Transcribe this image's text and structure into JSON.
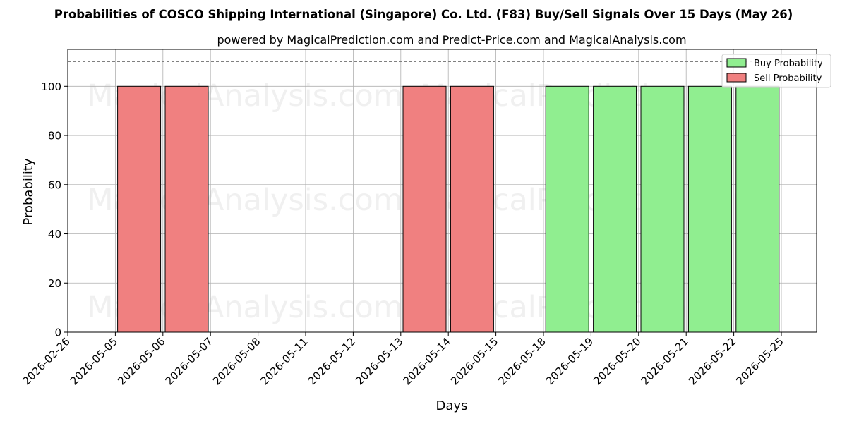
{
  "chart_data": {
    "type": "bar",
    "title": "Probabilities of COSCO Shipping International (Singapore) Co. Ltd. (F83) Buy/Sell Signals Over 15 Days (May 26)",
    "subtitle": "powered by MagicalPrediction.com and Predict-Price.com and MagicalAnalysis.com",
    "xlabel": "Days",
    "ylabel": "Probability",
    "ylim": [
      0,
      115
    ],
    "yticks": [
      0,
      20,
      40,
      60,
      80,
      100
    ],
    "threshold_line": 110,
    "grid": true,
    "legend_position": "top-right",
    "categories": [
      "2026-02-26",
      "2026-05-05",
      "2026-05-06",
      "2026-05-07",
      "2026-05-08",
      "2026-05-11",
      "2026-05-12",
      "2026-05-13",
      "2026-05-14",
      "2026-05-15",
      "2026-05-18",
      "2026-05-19",
      "2026-05-20",
      "2026-05-21",
      "2026-05-22",
      "2026-05-25"
    ],
    "series": [
      {
        "name": "Buy Probability",
        "color": "#90ee90",
        "bars": [
          {
            "date": "2026-05-18",
            "value": 100
          },
          {
            "date": "2026-05-19",
            "value": 100
          },
          {
            "date": "2026-05-20",
            "value": 100
          },
          {
            "date": "2026-05-21",
            "value": 100
          },
          {
            "date": "2026-05-22",
            "value": 100
          }
        ]
      },
      {
        "name": "Sell Probability",
        "color": "#f08080",
        "bars": [
          {
            "date": "2026-05-05",
            "value": 100
          },
          {
            "date": "2026-05-06",
            "value": 100
          },
          {
            "date": "2026-05-13",
            "value": 100
          },
          {
            "date": "2026-05-14",
            "value": 100
          }
        ]
      }
    ],
    "watermarks": [
      "MagicalAnalysis.com",
      "MagicalPrediction.com"
    ]
  }
}
